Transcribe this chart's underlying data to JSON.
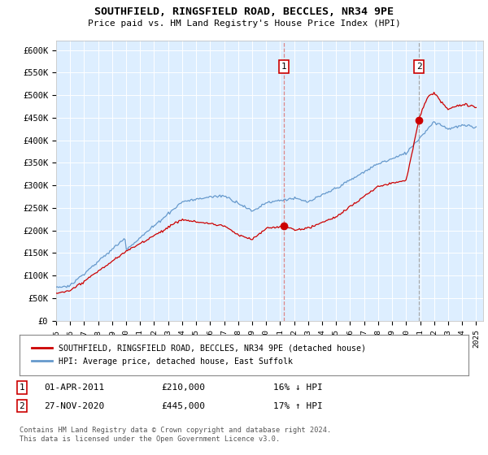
{
  "title": "SOUTHFIELD, RINGSFIELD ROAD, BECCLES, NR34 9PE",
  "subtitle": "Price paid vs. HM Land Registry's House Price Index (HPI)",
  "legend_line1": "SOUTHFIELD, RINGSFIELD ROAD, BECCLES, NR34 9PE (detached house)",
  "legend_line2": "HPI: Average price, detached house, East Suffolk",
  "annotation1_date": "01-APR-2011",
  "annotation1_price": "£210,000",
  "annotation1_hpi": "16% ↓ HPI",
  "annotation2_date": "27-NOV-2020",
  "annotation2_price": "£445,000",
  "annotation2_hpi": "17% ↑ HPI",
  "footnote": "Contains HM Land Registry data © Crown copyright and database right 2024.\nThis data is licensed under the Open Government Licence v3.0.",
  "ylim": [
    0,
    620000
  ],
  "yticks": [
    0,
    50000,
    100000,
    150000,
    200000,
    250000,
    300000,
    350000,
    400000,
    450000,
    500000,
    550000,
    600000
  ],
  "ytick_labels": [
    "£0",
    "£50K",
    "£100K",
    "£150K",
    "£200K",
    "£250K",
    "£300K",
    "£350K",
    "£400K",
    "£450K",
    "£500K",
    "£550K",
    "£600K"
  ],
  "bg_color": "#ddeeff",
  "grid_color": "#ffffff",
  "red_color": "#cc0000",
  "blue_color": "#6699cc",
  "marker1_x": 2011.25,
  "marker1_y": 210000,
  "marker2_x": 2020.92,
  "marker2_y": 445000,
  "xmin": 1995,
  "xmax": 2025.5,
  "xticks": [
    1995,
    1996,
    1997,
    1998,
    1999,
    2000,
    2001,
    2002,
    2003,
    2004,
    2005,
    2006,
    2007,
    2008,
    2009,
    2010,
    2011,
    2012,
    2013,
    2014,
    2015,
    2016,
    2017,
    2018,
    2019,
    2020,
    2021,
    2022,
    2023,
    2024,
    2025
  ]
}
